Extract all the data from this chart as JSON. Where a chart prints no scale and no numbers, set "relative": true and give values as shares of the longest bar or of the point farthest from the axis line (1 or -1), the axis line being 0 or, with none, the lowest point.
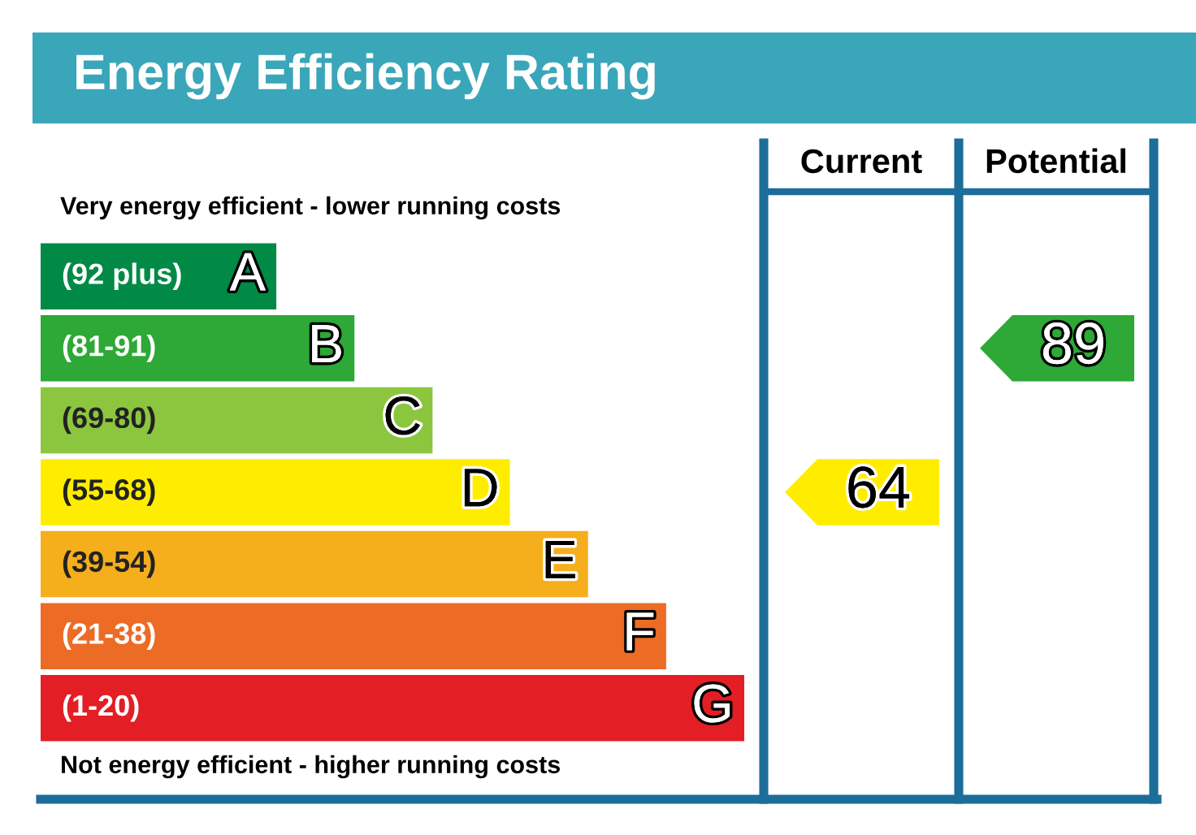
{
  "chart_data": {
    "type": "bar",
    "orientation": "horizontal",
    "relative": true,
    "title": "Energy Efficiency Rating",
    "categories": [
      "(92 plus)",
      "(81-91)",
      "(69-80)",
      "(55-68)",
      "(39-54)",
      "(21-38)",
      "(1-20)"
    ],
    "values": [
      0.335,
      0.446,
      0.557,
      0.667,
      0.778,
      0.889,
      1.0
    ],
    "colors": [
      "#008a46",
      "#2ea836",
      "#8cc63e",
      "#ffed00",
      "#f5ae1c",
      "#ec6b25",
      "#e31e24"
    ],
    "annotations": [
      "Very energy efficient - lower running costs",
      "Not energy efficient - higher running costs",
      "Current",
      "Potential",
      {
        "text": "A",
        "y": "(92 plus)"
      },
      {
        "text": "B",
        "y": "(81-91)"
      },
      {
        "text": "C",
        "y": "(69-80)"
      },
      {
        "text": "D",
        "y": "(55-68)"
      },
      {
        "text": "E",
        "y": "(39-54)"
      },
      {
        "text": "F",
        "y": "(21-38)"
      },
      {
        "text": "G",
        "y": "(1-20)"
      },
      "64",
      "89"
    ]
  }
}
